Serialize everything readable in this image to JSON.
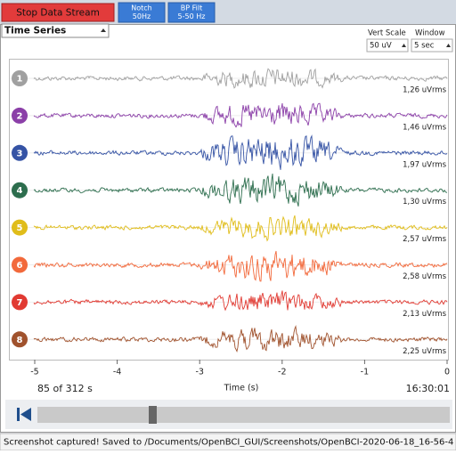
{
  "toolbar": {
    "stop_button": "Stop Data Stream",
    "notch_button": [
      "Notch",
      "50Hz"
    ],
    "filter_button": [
      "BP Filt",
      "5-50 Hz"
    ]
  },
  "widget": {
    "title": "Time Series",
    "vert_scale_label": "Vert Scale",
    "window_label": "Window",
    "vert_scale": "50 uV",
    "window": "5 sec"
  },
  "channels": [
    {
      "number": "1",
      "color": "#a0a0a0",
      "rms": "1,26 uVrms"
    },
    {
      "number": "2",
      "color": "#8b3fa8",
      "rms": "1,46 uVrms"
    },
    {
      "number": "3",
      "color": "#3553a5",
      "rms": "1,97 uVrms"
    },
    {
      "number": "4",
      "color": "#2d6e4e",
      "rms": "1,30 uVrms"
    },
    {
      "number": "5",
      "color": "#e0bd1a",
      "rms": "2,57 uVrms"
    },
    {
      "number": "6",
      "color": "#f2693b",
      "rms": "2,58 uVrms"
    },
    {
      "number": "7",
      "color": "#e13a32",
      "rms": "2,13 uVrms"
    },
    {
      "number": "8",
      "color": "#a0522d",
      "rms": "2,25 uVrms"
    }
  ],
  "x_axis": {
    "label": "Time (s)",
    "xlim": [
      -5,
      0
    ],
    "ticks": [
      -5,
      -4,
      -3,
      -2,
      -1,
      0
    ]
  },
  "playback": {
    "position": "85 of 312 s",
    "clock": "16:30:01"
  },
  "status": "Screenshot captured! Saved to /Documents/OpenBCI_GUI/Screenshots/OpenBCI-2020-06-18_16-56-4"
}
